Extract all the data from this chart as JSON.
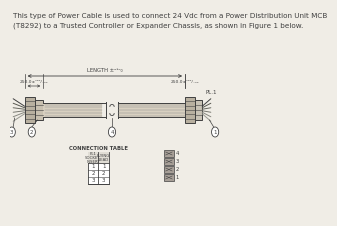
{
  "bg_color": "#f0ede6",
  "text_color": "#404040",
  "title_line1": "This type of Power Cable is used to connect 24 Vdc from a Power Distribution Unit MCB",
  "title_line2": "(T8292) to a Trusted Controller or Expander Chassis, as shown in Figure 1 below.",
  "title_fontsize": 5.2,
  "length_label": "LENGTH ±²⁵⁰₀",
  "left_dim_label": "250.0±¹⁰⁰/₋₀₂",
  "right_dim_label": "250.0±¹⁰⁰/₋₀₂",
  "conn_table_title": "CONNECTION TABLE",
  "col1_header": "PL1\nSOCKET\nINSERT",
  "col2_header": "FLYING\nLEAD",
  "table_rows": [
    [
      "1",
      "1"
    ],
    [
      "2",
      "2"
    ],
    [
      "3",
      "3"
    ]
  ],
  "pl1_label": "PL.1",
  "pin_labels_right": [
    "4",
    "3",
    "2",
    "1"
  ],
  "cable_color": "#d8d0c0",
  "connector_color": "#b8b0a0",
  "wire_colors": [
    "#404040",
    "#585850",
    "#686860",
    "#787870",
    "#888880",
    "#989890"
  ]
}
